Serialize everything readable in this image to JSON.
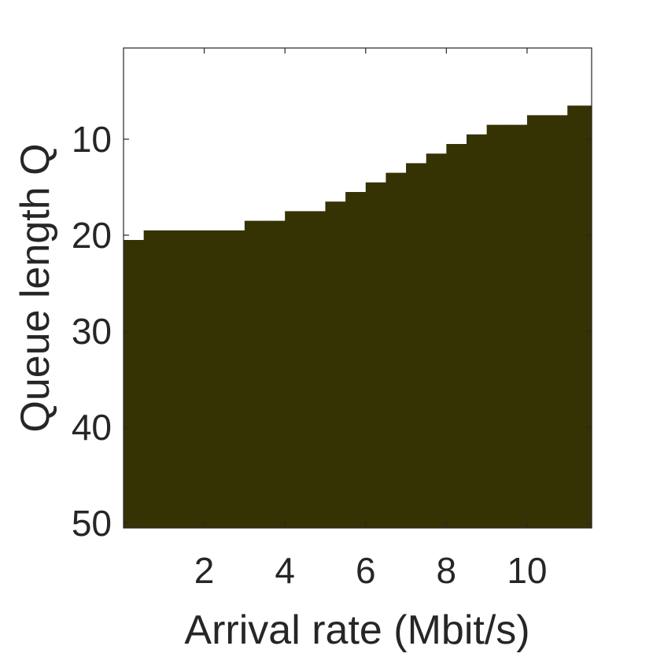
{
  "chart_data": {
    "type": "heatmap",
    "title": "",
    "xlabel": "Arrival rate (Mbit/s)",
    "ylabel": "Queue length Q",
    "xlim": [
      0,
      11.6
    ],
    "ylim": [
      50.5,
      0.5
    ],
    "y_reversed": true,
    "xticks": [
      2,
      4,
      6,
      8,
      10
    ],
    "yticks": [
      10,
      20,
      30,
      40,
      50
    ],
    "x_edges": [
      0,
      0.5,
      1,
      1.5,
      2,
      2.5,
      3,
      3.5,
      4,
      4.5,
      5,
      5.5,
      6,
      6.5,
      7,
      7.5,
      8,
      8.5,
      9,
      9.5,
      10,
      10.5,
      11,
      11.6
    ],
    "boundary_q": [
      20.5,
      19.5,
      19.5,
      19.5,
      19.5,
      19.5,
      18.5,
      18.5,
      17.5,
      17.5,
      16.5,
      15.5,
      14.5,
      13.5,
      12.5,
      11.5,
      10.5,
      9.5,
      8.5,
      8.5,
      7.5,
      7.5,
      6.5
    ],
    "fill_color": "#353304",
    "background_color": "#ffffff",
    "grid": false
  }
}
